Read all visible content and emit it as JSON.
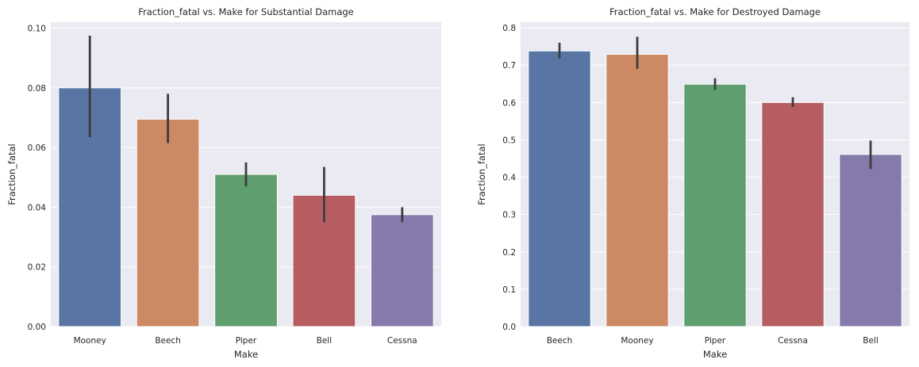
{
  "chart_data": [
    {
      "type": "bar",
      "title": "Fraction_fatal vs. Make for Substantial Damage",
      "xlabel": "Make",
      "ylabel": "Fraction_fatal",
      "categories": [
        "Mooney",
        "Beech",
        "Piper",
        "Bell",
        "Cessna"
      ],
      "values": [
        0.08,
        0.0695,
        0.051,
        0.044,
        0.0375
      ],
      "error_low": [
        0.0635,
        0.0615,
        0.047,
        0.035,
        0.035
      ],
      "error_high": [
        0.0975,
        0.078,
        0.055,
        0.0535,
        0.04
      ],
      "ylim": [
        0,
        0.102
      ],
      "yticks": [
        0.0,
        0.02,
        0.04,
        0.06,
        0.08,
        0.1
      ],
      "ytick_labels": [
        "0.00",
        "0.02",
        "0.04",
        "0.06",
        "0.08",
        "0.10"
      ],
      "colors": [
        "#5975a4",
        "#cc8963",
        "#5f9e6e",
        "#b55d60",
        "#857aab"
      ],
      "grid": true
    },
    {
      "type": "bar",
      "title": "Fraction_fatal vs. Make for Destroyed Damage",
      "xlabel": "Make",
      "ylabel": "Fraction_fatal",
      "categories": [
        "Beech",
        "Mooney",
        "Piper",
        "Cessna",
        "Bell"
      ],
      "values": [
        0.738,
        0.729,
        0.649,
        0.6,
        0.461
      ],
      "error_low": [
        0.718,
        0.69,
        0.634,
        0.588,
        0.422
      ],
      "error_high": [
        0.76,
        0.776,
        0.665,
        0.614,
        0.498
      ],
      "ylim": [
        0,
        0.815
      ],
      "yticks": [
        0.0,
        0.1,
        0.2,
        0.3,
        0.4,
        0.5,
        0.6,
        0.7,
        0.8
      ],
      "ytick_labels": [
        "0.0",
        "0.1",
        "0.2",
        "0.3",
        "0.4",
        "0.5",
        "0.6",
        "0.7",
        "0.8"
      ],
      "colors": [
        "#5975a4",
        "#cc8963",
        "#5f9e6e",
        "#b55d60",
        "#857aab"
      ],
      "grid": true
    }
  ]
}
